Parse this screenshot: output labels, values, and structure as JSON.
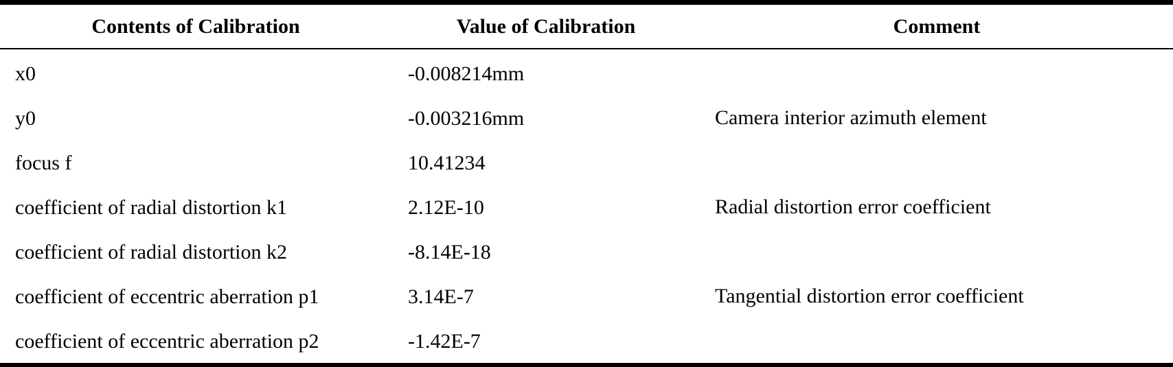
{
  "table": {
    "headers": [
      "Contents of Calibration",
      "Value of Calibration",
      "Comment"
    ],
    "rows": [
      {
        "content": "x0",
        "value": "-0.008214mm"
      },
      {
        "content": "y0",
        "value": "-0.003216mm"
      },
      {
        "content": "focus f",
        "value": "10.41234"
      },
      {
        "content": "coefficient of radial distortion k1",
        "value": "2.12E-10"
      },
      {
        "content": "coefficient of radial distortion k2",
        "value": "-8.14E-18"
      },
      {
        "content": "coefficient of eccentric aberration p1",
        "value": "3.14E-7"
      },
      {
        "content": "coefficient of eccentric aberration p2",
        "value": "-1.42E-7"
      }
    ],
    "comments": [
      "Camera interior azimuth element",
      "Radial distortion error coefficient",
      "Tangential distortion error coefficient"
    ]
  }
}
